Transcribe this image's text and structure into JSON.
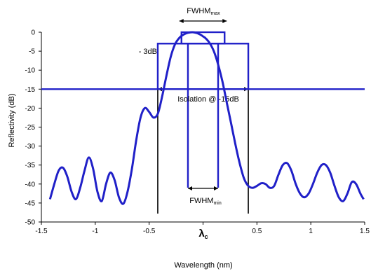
{
  "chart_data": {
    "type": "line",
    "title": "",
    "xlabel": "Wavelength (nm)",
    "ylabel": "Reflectivity (dB)",
    "xlim": [
      -1.5,
      1.5
    ],
    "ylim": [
      -50,
      0
    ],
    "x_ticks": [
      -1.5,
      -1,
      -0.5,
      0,
      0.5,
      1,
      1.5
    ],
    "x_tick_labels": [
      "-1.5",
      "-1",
      "-0.5",
      "",
      "0.5",
      "1",
      "1.5"
    ],
    "y_ticks": [
      0,
      -5,
      -10,
      -15,
      -20,
      -25,
      -30,
      -35,
      -40,
      -45,
      -50
    ],
    "y_tick_labels": [
      "0",
      "-5",
      "-10",
      "-15",
      "-20",
      "-25",
      "-30",
      "-35",
      "-40",
      "-45",
      "-50"
    ],
    "grid": false,
    "center_label": {
      "main": "λ",
      "sub": "c"
    },
    "colors": {
      "curve": "#2020c8",
      "annotation": "#000000"
    },
    "series": [
      {
        "x": [
          -1.42,
          -1.38,
          -1.34,
          -1.3,
          -1.26,
          -1.22,
          -1.18,
          -1.14,
          -1.1,
          -1.06,
          -1.02,
          -0.98,
          -0.94,
          -0.9,
          -0.86,
          -0.82,
          -0.78,
          -0.74,
          -0.7,
          -0.66,
          -0.62,
          -0.58,
          -0.54,
          -0.5,
          -0.46,
          -0.42,
          -0.38,
          -0.34,
          -0.3,
          -0.26,
          -0.22,
          -0.18,
          -0.14,
          -0.1,
          -0.06,
          -0.02,
          0.0,
          0.02,
          0.06,
          0.1,
          0.14,
          0.18,
          0.22,
          0.26,
          0.3,
          0.34,
          0.38,
          0.42,
          0.46,
          0.5,
          0.54,
          0.58,
          0.62,
          0.66,
          0.7,
          0.74,
          0.78,
          0.82,
          0.86,
          0.9,
          0.94,
          0.98,
          1.02,
          1.06,
          1.1,
          1.14,
          1.18,
          1.22,
          1.26,
          1.3,
          1.34,
          1.38,
          1.42,
          1.46,
          1.49
        ],
        "y": [
          -44,
          -40,
          -36.5,
          -35.7,
          -38,
          -42,
          -44,
          -41,
          -36.5,
          -33,
          -36,
          -42,
          -44.5,
          -40,
          -37,
          -39,
          -43.5,
          -45.2,
          -42,
          -36,
          -28.5,
          -22.5,
          -20,
          -21,
          -22.5,
          -21.5,
          -17,
          -11.5,
          -6.5,
          -3.2,
          -1.5,
          -0.6,
          -0.15,
          0,
          -0.2,
          -0.7,
          -1.1,
          -1.5,
          -2.8,
          -5,
          -8.5,
          -13,
          -18.5,
          -24,
          -29.5,
          -34.5,
          -38.5,
          -40.5,
          -41,
          -40.5,
          -39.8,
          -40,
          -41,
          -40.5,
          -37.5,
          -35,
          -34.5,
          -36.5,
          -40,
          -42.5,
          -43.5,
          -42.5,
          -40,
          -37,
          -35,
          -35,
          -37,
          -40.5,
          -43.5,
          -44.5,
          -42.5,
          -39.5,
          -40,
          -42.5,
          -44
        ]
      }
    ],
    "annotations": {
      "fwhm_max": {
        "main": "FWHM",
        "sub": "max",
        "x_from": -0.22,
        "x_to": 0.22
      },
      "fwhm_min": {
        "main": "FWHM",
        "sub": "min",
        "x_from": -0.14,
        "x_to": 0.14
      },
      "db3_label": "- 3dB",
      "db3_box": {
        "x_from": -0.42,
        "x_to": 0.42,
        "y": -3
      },
      "isolation_label": "Isolation @ -15dB",
      "isolation_line_y": -15,
      "max_box": {
        "x_from": -0.2,
        "x_to": 0.2,
        "y": 0
      }
    }
  }
}
